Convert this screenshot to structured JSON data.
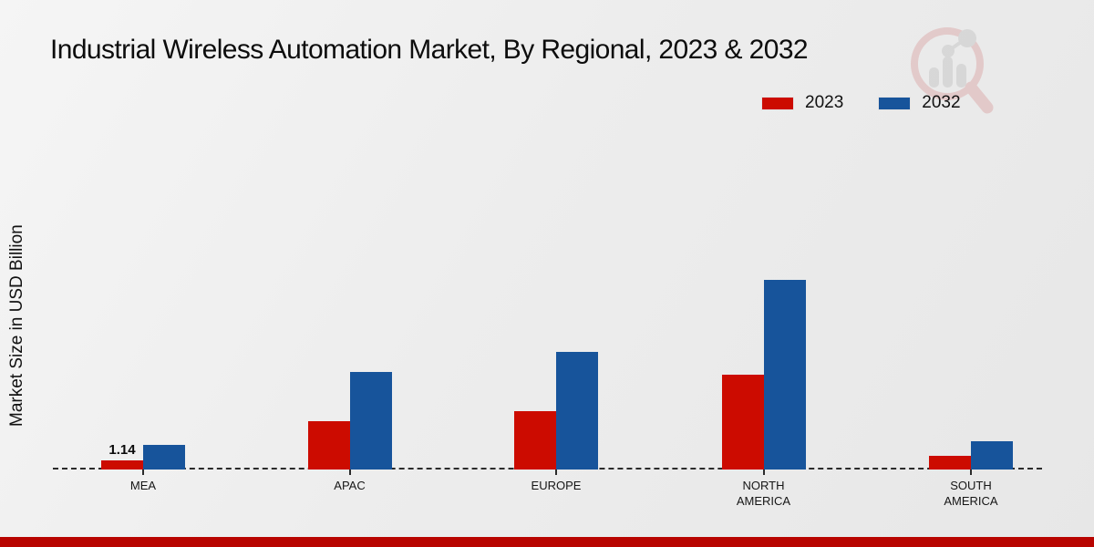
{
  "title": "Industrial Wireless Automation Market, By Regional, 2023 & 2032",
  "ylabel": "Market Size in USD Billion",
  "chart_data": {
    "type": "bar",
    "categories": [
      "MEA",
      "APAC",
      "EUROPE",
      "NORTH AMERICA",
      "SOUTH AMERICA"
    ],
    "series": [
      {
        "name": "2023",
        "color": "#cc0b00",
        "values": [
          1.14,
          6.0,
          7.3,
          11.9,
          1.7
        ]
      },
      {
        "name": "2032",
        "color": "#17549b",
        "values": [
          3.1,
          12.2,
          14.7,
          23.7,
          3.5
        ]
      }
    ],
    "data_labels": [
      {
        "category": "MEA",
        "series": "2023",
        "text": "1.14"
      }
    ],
    "ylim": [
      0,
      25
    ],
    "grid": false,
    "legend_position": "top-right",
    "baseline_color": "#2b2b2b"
  },
  "watermark": {
    "icon": "magnifier-bar-chart-logo"
  },
  "footer": {
    "bar_color": "#b80400"
  }
}
